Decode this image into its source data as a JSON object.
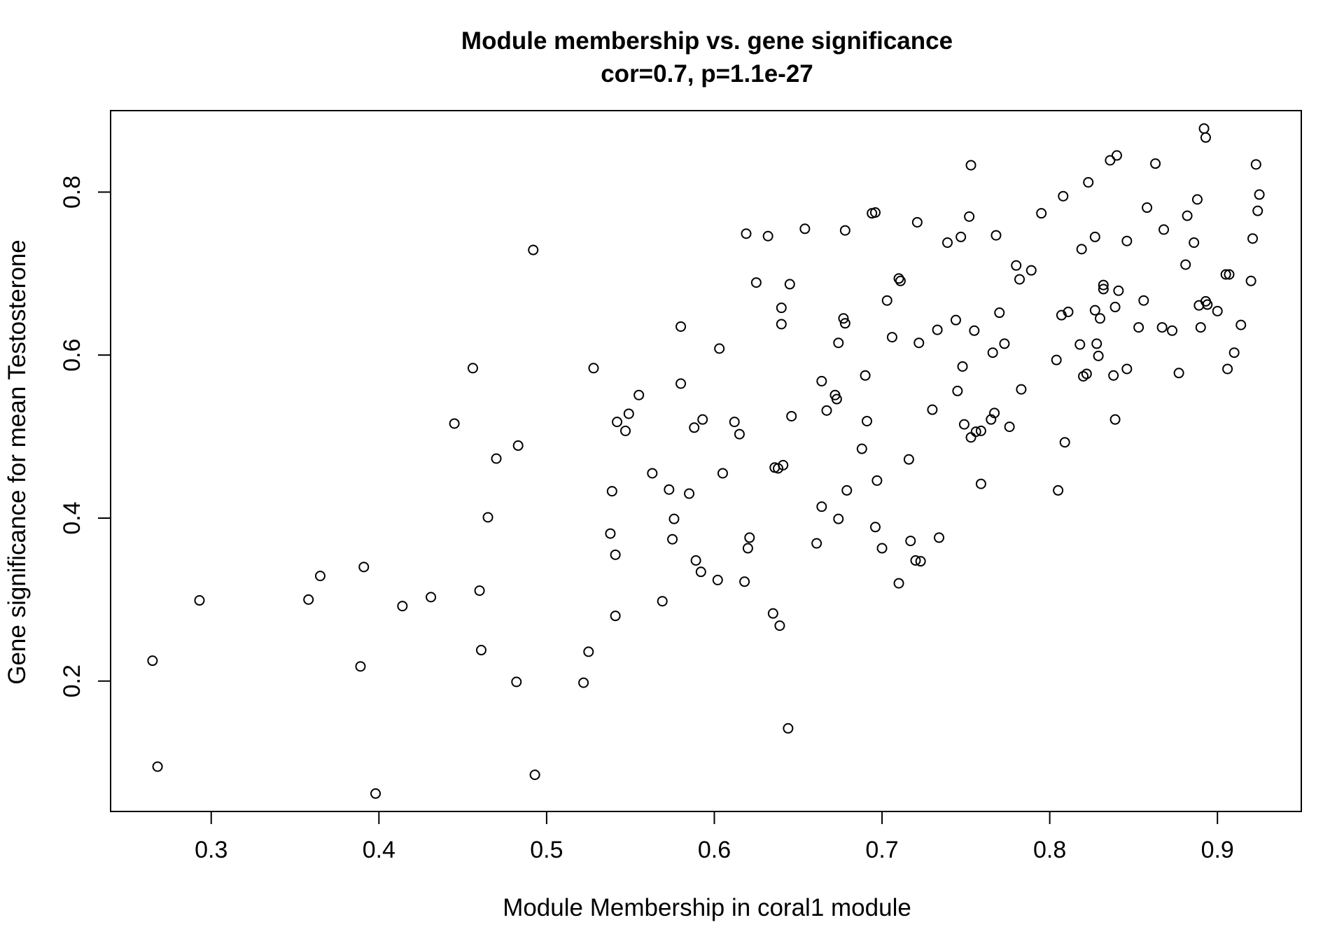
{
  "chart_data": {
    "type": "scatter",
    "title": "Module membership vs. gene significance",
    "subtitle": "cor=0.7, p=1.1e-27",
    "xlabel": "Module Membership in coral1 module",
    "ylabel": "Gene significance for mean Testosterone",
    "xlim": [
      0.24,
      0.95
    ],
    "ylim": [
      0.04,
      0.9
    ],
    "xticks": [
      0.3,
      0.4,
      0.5,
      0.6,
      0.7,
      0.8,
      0.9
    ],
    "xtick_labels": [
      "0.3",
      "0.4",
      "0.5",
      "0.6",
      "0.7",
      "0.8",
      "0.9"
    ],
    "yticks": [
      0.2,
      0.4,
      0.6,
      0.8
    ],
    "ytick_labels": [
      "0.2",
      "0.4",
      "0.6",
      "0.8"
    ],
    "grid": false,
    "marker": "open-circle",
    "points": [
      [
        0.265,
        0.225
      ],
      [
        0.268,
        0.095
      ],
      [
        0.293,
        0.299
      ],
      [
        0.358,
        0.3
      ],
      [
        0.365,
        0.329
      ],
      [
        0.389,
        0.218
      ],
      [
        0.391,
        0.34
      ],
      [
        0.398,
        0.062
      ],
      [
        0.414,
        0.292
      ],
      [
        0.431,
        0.303
      ],
      [
        0.445,
        0.516
      ],
      [
        0.456,
        0.584
      ],
      [
        0.46,
        0.311
      ],
      [
        0.461,
        0.238
      ],
      [
        0.465,
        0.401
      ],
      [
        0.47,
        0.473
      ],
      [
        0.482,
        0.199
      ],
      [
        0.483,
        0.489
      ],
      [
        0.492,
        0.729
      ],
      [
        0.493,
        0.085
      ],
      [
        0.522,
        0.198
      ],
      [
        0.525,
        0.236
      ],
      [
        0.528,
        0.584
      ],
      [
        0.538,
        0.381
      ],
      [
        0.539,
        0.433
      ],
      [
        0.541,
        0.28
      ],
      [
        0.541,
        0.355
      ],
      [
        0.542,
        0.518
      ],
      [
        0.547,
        0.507
      ],
      [
        0.549,
        0.528
      ],
      [
        0.555,
        0.551
      ],
      [
        0.563,
        0.455
      ],
      [
        0.569,
        0.298
      ],
      [
        0.573,
        0.435
      ],
      [
        0.575,
        0.374
      ],
      [
        0.576,
        0.399
      ],
      [
        0.58,
        0.565
      ],
      [
        0.58,
        0.635
      ],
      [
        0.585,
        0.43
      ],
      [
        0.588,
        0.511
      ],
      [
        0.589,
        0.348
      ],
      [
        0.592,
        0.334
      ],
      [
        0.593,
        0.521
      ],
      [
        0.602,
        0.324
      ],
      [
        0.603,
        0.608
      ],
      [
        0.605,
        0.455
      ],
      [
        0.612,
        0.518
      ],
      [
        0.615,
        0.503
      ],
      [
        0.618,
        0.322
      ],
      [
        0.619,
        0.749
      ],
      [
        0.62,
        0.363
      ],
      [
        0.621,
        0.376
      ],
      [
        0.625,
        0.689
      ],
      [
        0.632,
        0.746
      ],
      [
        0.635,
        0.283
      ],
      [
        0.636,
        0.462
      ],
      [
        0.638,
        0.461
      ],
      [
        0.639,
        0.268
      ],
      [
        0.64,
        0.658
      ],
      [
        0.64,
        0.638
      ],
      [
        0.641,
        0.465
      ],
      [
        0.644,
        0.142
      ],
      [
        0.645,
        0.687
      ],
      [
        0.646,
        0.525
      ],
      [
        0.654,
        0.755
      ],
      [
        0.661,
        0.369
      ],
      [
        0.664,
        0.568
      ],
      [
        0.664,
        0.414
      ],
      [
        0.667,
        0.532
      ],
      [
        0.672,
        0.551
      ],
      [
        0.673,
        0.546
      ],
      [
        0.674,
        0.615
      ],
      [
        0.674,
        0.399
      ],
      [
        0.677,
        0.645
      ],
      [
        0.678,
        0.753
      ],
      [
        0.678,
        0.639
      ],
      [
        0.679,
        0.434
      ],
      [
        0.688,
        0.485
      ],
      [
        0.69,
        0.575
      ],
      [
        0.691,
        0.519
      ],
      [
        0.694,
        0.774
      ],
      [
        0.696,
        0.775
      ],
      [
        0.696,
        0.389
      ],
      [
        0.697,
        0.446
      ],
      [
        0.7,
        0.363
      ],
      [
        0.703,
        0.667
      ],
      [
        0.706,
        0.622
      ],
      [
        0.71,
        0.32
      ],
      [
        0.71,
        0.694
      ],
      [
        0.711,
        0.691
      ],
      [
        0.716,
        0.472
      ],
      [
        0.717,
        0.372
      ],
      [
        0.72,
        0.348
      ],
      [
        0.721,
        0.763
      ],
      [
        0.722,
        0.615
      ],
      [
        0.723,
        0.347
      ],
      [
        0.73,
        0.533
      ],
      [
        0.733,
        0.631
      ],
      [
        0.734,
        0.376
      ],
      [
        0.739,
        0.738
      ],
      [
        0.744,
        0.643
      ],
      [
        0.745,
        0.556
      ],
      [
        0.747,
        0.745
      ],
      [
        0.748,
        0.586
      ],
      [
        0.749,
        0.515
      ],
      [
        0.752,
        0.77
      ],
      [
        0.753,
        0.833
      ],
      [
        0.753,
        0.499
      ],
      [
        0.755,
        0.63
      ],
      [
        0.756,
        0.506
      ],
      [
        0.759,
        0.442
      ],
      [
        0.759,
        0.507
      ],
      [
        0.765,
        0.521
      ],
      [
        0.766,
        0.603
      ],
      [
        0.767,
        0.529
      ],
      [
        0.768,
        0.747
      ],
      [
        0.77,
        0.652
      ],
      [
        0.773,
        0.614
      ],
      [
        0.776,
        0.512
      ],
      [
        0.78,
        0.71
      ],
      [
        0.782,
        0.693
      ],
      [
        0.783,
        0.558
      ],
      [
        0.789,
        0.704
      ],
      [
        0.795,
        0.774
      ],
      [
        0.804,
        0.594
      ],
      [
        0.805,
        0.434
      ],
      [
        0.807,
        0.649
      ],
      [
        0.808,
        0.795
      ],
      [
        0.809,
        0.493
      ],
      [
        0.811,
        0.653
      ],
      [
        0.818,
        0.613
      ],
      [
        0.819,
        0.73
      ],
      [
        0.82,
        0.574
      ],
      [
        0.822,
        0.577
      ],
      [
        0.823,
        0.812
      ],
      [
        0.827,
        0.655
      ],
      [
        0.827,
        0.745
      ],
      [
        0.828,
        0.614
      ],
      [
        0.829,
        0.599
      ],
      [
        0.83,
        0.645
      ],
      [
        0.832,
        0.681
      ],
      [
        0.832,
        0.686
      ],
      [
        0.836,
        0.839
      ],
      [
        0.838,
        0.575
      ],
      [
        0.839,
        0.659
      ],
      [
        0.839,
        0.521
      ],
      [
        0.84,
        0.845
      ],
      [
        0.841,
        0.679
      ],
      [
        0.846,
        0.74
      ],
      [
        0.846,
        0.583
      ],
      [
        0.853,
        0.634
      ],
      [
        0.856,
        0.667
      ],
      [
        0.858,
        0.781
      ],
      [
        0.863,
        0.835
      ],
      [
        0.867,
        0.634
      ],
      [
        0.868,
        0.754
      ],
      [
        0.873,
        0.63
      ],
      [
        0.877,
        0.578
      ],
      [
        0.881,
        0.711
      ],
      [
        0.882,
        0.771
      ],
      [
        0.886,
        0.738
      ],
      [
        0.888,
        0.791
      ],
      [
        0.889,
        0.661
      ],
      [
        0.89,
        0.634
      ],
      [
        0.892,
        0.878
      ],
      [
        0.893,
        0.867
      ],
      [
        0.893,
        0.666
      ],
      [
        0.894,
        0.662
      ],
      [
        0.9,
        0.654
      ],
      [
        0.905,
        0.699
      ],
      [
        0.906,
        0.583
      ],
      [
        0.907,
        0.699
      ],
      [
        0.91,
        0.603
      ],
      [
        0.914,
        0.637
      ],
      [
        0.92,
        0.691
      ],
      [
        0.921,
        0.743
      ],
      [
        0.923,
        0.834
      ],
      [
        0.924,
        0.777
      ],
      [
        0.925,
        0.797
      ]
    ]
  }
}
